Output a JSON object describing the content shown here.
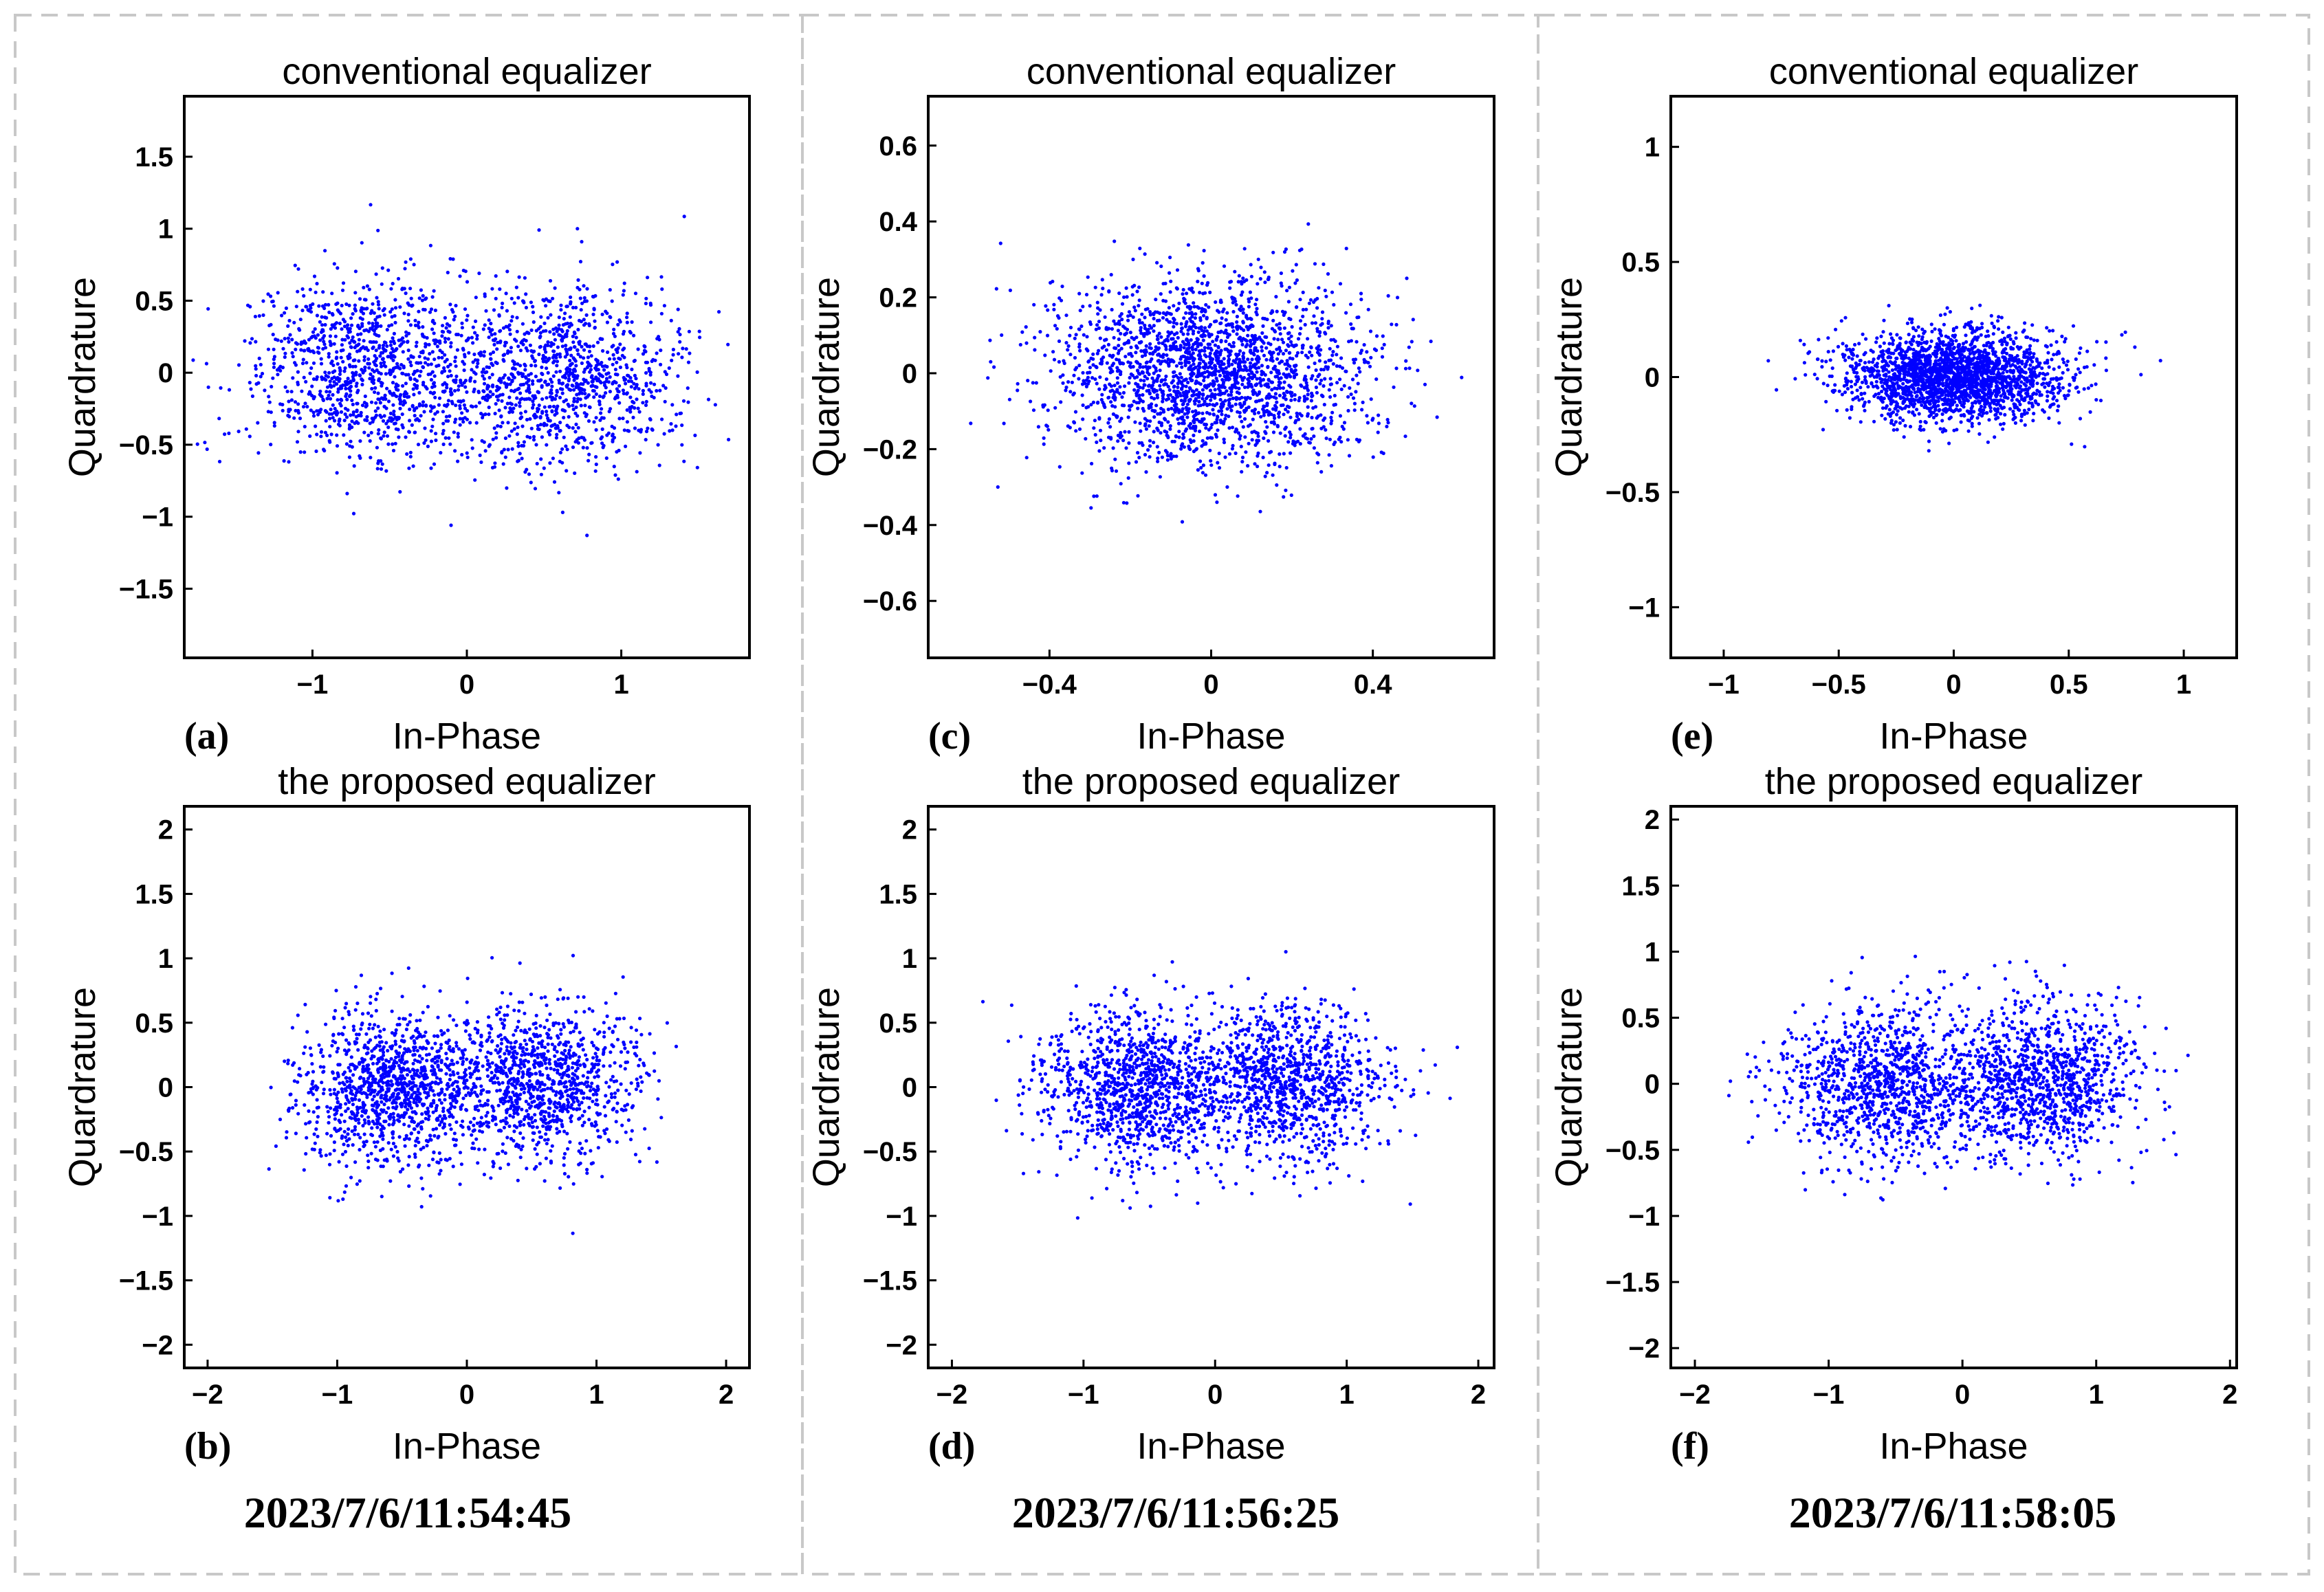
{
  "figure": {
    "timestamps": [
      "2023/7/6/11:54:45",
      "2023/7/6/11:56:25",
      "2023/7/6/11:58:05"
    ],
    "point_color": "#0000ff",
    "frame_color": "#c8c8c8"
  },
  "chart_data": [
    {
      "id": "a",
      "panel_label": "(a)",
      "type": "scatter",
      "title": "conventional equalizer",
      "xlabel": "In-Phase",
      "ylabel": "Quardrature",
      "xlim": [
        -1.83,
        1.83
      ],
      "ylim": [
        -1.98,
        1.92
      ],
      "xticks": [
        -1,
        0,
        1
      ],
      "xtick_labels": [
        "−1",
        "0",
        "1"
      ],
      "yticks": [
        -1.5,
        -1,
        -0.5,
        0,
        0.5,
        1,
        1.5
      ],
      "ytick_labels": [
        "−1.5",
        "−1",
        "−0.5",
        "0",
        "0.5",
        "1",
        "1.5"
      ],
      "clusters": [
        {
          "cx": -0.62,
          "cy": 0.02,
          "sx": 0.38,
          "sy": 0.32
        },
        {
          "cx": 0.62,
          "cy": -0.02,
          "sx": 0.38,
          "sy": 0.32
        }
      ],
      "n_points": 2200,
      "seed": 11
    },
    {
      "id": "c",
      "panel_label": "(c)",
      "type": "scatter",
      "title": "conventional equalizer",
      "xlabel": "In-Phase",
      "ylabel": "Quardrature",
      "xlim": [
        -0.7,
        0.7
      ],
      "ylim": [
        -0.75,
        0.73
      ],
      "xticks": [
        -0.4,
        0,
        0.4
      ],
      "xtick_labels": [
        "−0.4",
        "0",
        "0.4"
      ],
      "yticks": [
        -0.6,
        -0.4,
        -0.2,
        0,
        0.2,
        0.4,
        0.6
      ],
      "ytick_labels": [
        "−0.6",
        "−0.4",
        "−0.2",
        "0",
        "0.2",
        "0.4",
        "0.6"
      ],
      "clusters": [
        {
          "cx": 0.0,
          "cy": 0.0,
          "sx": 0.19,
          "sy": 0.12
        }
      ],
      "n_points": 2200,
      "seed": 23
    },
    {
      "id": "e",
      "panel_label": "(e)",
      "type": "scatter",
      "title": "conventional equalizer",
      "xlabel": "In-Phase",
      "ylabel": "Quardrature",
      "xlim": [
        -1.23,
        1.23
      ],
      "ylim": [
        -1.22,
        1.22
      ],
      "xticks": [
        -1,
        -0.5,
        0,
        0.5,
        1
      ],
      "xtick_labels": [
        "−1",
        "−0.5",
        "0",
        "0.5",
        "1"
      ],
      "yticks": [
        -1,
        -0.5,
        0,
        0.5,
        1
      ],
      "ytick_labels": [
        "−1",
        "−0.5",
        "0",
        "0.5",
        "1"
      ],
      "clusters": [
        {
          "cx": 0.0,
          "cy": 0.0,
          "sx": 0.24,
          "sy": 0.1
        }
      ],
      "n_points": 2200,
      "seed": 37
    },
    {
      "id": "b",
      "panel_label": "(b)",
      "type": "scatter",
      "title": "the proposed equalizer",
      "xlabel": "In-Phase",
      "ylabel": "Quardrature",
      "xlim": [
        -2.18,
        2.18
      ],
      "ylim": [
        -2.18,
        2.18
      ],
      "xticks": [
        -2,
        -1,
        0,
        1,
        2
      ],
      "xtick_labels": [
        "−2",
        "−1",
        "0",
        "1",
        "2"
      ],
      "yticks": [
        -2,
        -1.5,
        -1,
        -0.5,
        0,
        0.5,
        1,
        1.5,
        2
      ],
      "ytick_labels": [
        "−2",
        "−1.5",
        "−1",
        "−0.5",
        "0",
        "0.5",
        "1",
        "1.5",
        "2"
      ],
      "clusters": [
        {
          "cx": -0.58,
          "cy": 0.0,
          "sx": 0.36,
          "sy": 0.3
        },
        {
          "cx": 0.58,
          "cy": 0.02,
          "sx": 0.36,
          "sy": 0.3
        }
      ],
      "n_points": 2200,
      "seed": 41
    },
    {
      "id": "d",
      "panel_label": "(d)",
      "type": "scatter",
      "title": "the proposed equalizer",
      "xlabel": "In-Phase",
      "ylabel": "Quardrature",
      "xlim": [
        -2.18,
        2.12
      ],
      "ylim": [
        -2.18,
        2.18
      ],
      "xticks": [
        -2,
        -1,
        0,
        1,
        2
      ],
      "xtick_labels": [
        "−2",
        "−1",
        "0",
        "1",
        "2"
      ],
      "yticks": [
        -2,
        -1.5,
        -1,
        -0.5,
        0,
        0.5,
        1,
        1.5,
        2
      ],
      "ytick_labels": [
        "−2",
        "−1.5",
        "−1",
        "−0.5",
        "0",
        "0.5",
        "1",
        "1.5",
        "2"
      ],
      "clusters": [
        {
          "cx": -0.6,
          "cy": 0.0,
          "sx": 0.37,
          "sy": 0.3
        },
        {
          "cx": 0.58,
          "cy": 0.02,
          "sx": 0.37,
          "sy": 0.3
        }
      ],
      "n_points": 2200,
      "seed": 53
    },
    {
      "id": "f",
      "panel_label": "(f)",
      "type": "scatter",
      "title": "the proposed equalizer",
      "xlabel": "In-Phase",
      "ylabel": "Quardrature",
      "xlim": [
        -2.18,
        2.05
      ],
      "ylim": [
        -2.15,
        2.1
      ],
      "xticks": [
        -2,
        -1,
        0,
        1,
        2
      ],
      "xtick_labels": [
        "−2",
        "−1",
        "0",
        "1",
        "2"
      ],
      "yticks": [
        -2,
        -1.5,
        -1,
        -0.5,
        0,
        0.5,
        1,
        1.5,
        2
      ],
      "ytick_labels": [
        "−2",
        "−1.5",
        "−1",
        "−0.5",
        "0",
        "0.5",
        "1",
        "1.5",
        "2"
      ],
      "clusters": [
        {
          "cx": -0.6,
          "cy": 0.0,
          "sx": 0.37,
          "sy": 0.3
        },
        {
          "cx": 0.58,
          "cy": 0.02,
          "sx": 0.37,
          "sy": 0.3
        }
      ],
      "n_points": 2200,
      "seed": 67
    }
  ]
}
